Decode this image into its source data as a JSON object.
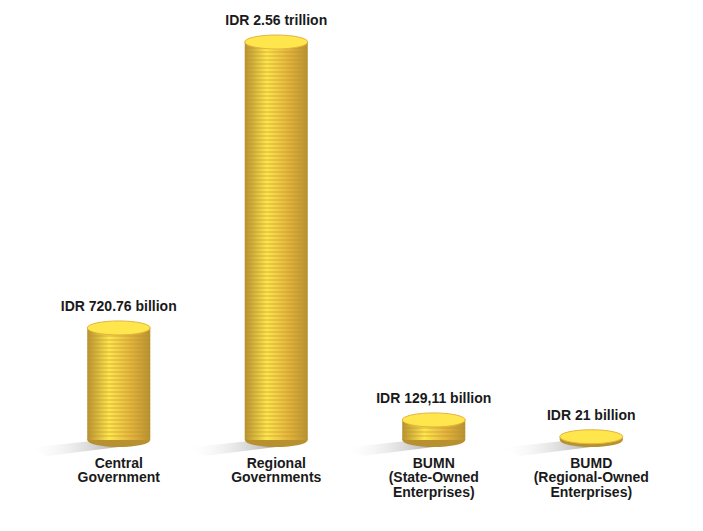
{
  "chart_data": {
    "type": "bar",
    "categories": [
      "Central Government",
      "Regional Governments",
      "BUMN (State-Owned Enterprises)",
      "BUMD (Regional-Owned Enterprises)"
    ],
    "values": [
      720.76,
      2560,
      129.11,
      21
    ],
    "value_labels": [
      "IDR 720.76 billion",
      "IDR 2.56 trillion",
      "IDR 129,11 billion",
      "IDR 21 billion"
    ],
    "color": "#e3b33c",
    "data_labels": true
  }
}
